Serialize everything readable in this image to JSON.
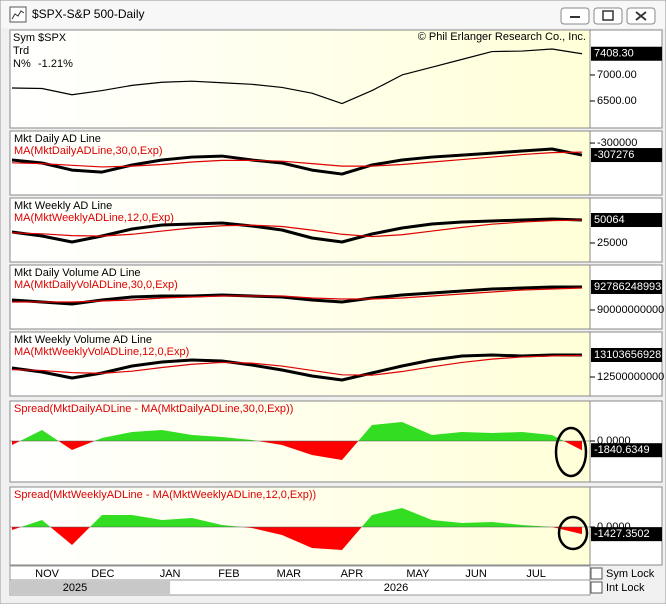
{
  "window": {
    "title": "$SPX-S&P 500-Daily",
    "copyright": "© Phil Erlanger Research Co., Inc.",
    "sym_label": "Sym",
    "sym": "$SPX",
    "trd_label": "Trd",
    "n_label": "N%",
    "n_value": "-1.21%",
    "sym_lock": "Sym Lock",
    "int_lock": "Int Lock"
  },
  "x_axis": {
    "xlim": [
      0,
      19
    ],
    "xticks": [
      {
        "value": 1.17,
        "label": "NOV"
      },
      {
        "value": 3.03,
        "label": "DEC"
      },
      {
        "value": 5.27,
        "label": "JAN"
      },
      {
        "value": 7.23,
        "label": "FEB"
      },
      {
        "value": 9.23,
        "label": "MAR"
      },
      {
        "value": 11.33,
        "label": "APR"
      },
      {
        "value": 13.53,
        "label": "MAY"
      },
      {
        "value": 15.47,
        "label": "JUN"
      },
      {
        "value": 17.47,
        "label": "JUL"
      }
    ],
    "years": [
      {
        "value": 2.1,
        "label": "2025"
      },
      {
        "value": 12.8,
        "label": "2026"
      }
    ]
  },
  "chart_data": [
    {
      "type": "line",
      "ylim": [
        5980,
        7865
      ],
      "yticks": [
        {
          "value": 7000,
          "label": "7000.00"
        },
        {
          "value": 6500,
          "label": "6500.00"
        }
      ],
      "last_label": "7408.30",
      "series": [
        {
          "name": "$SPX",
          "color": "#000000",
          "values": [
            6750,
            6740,
            6620,
            6700,
            6800,
            6860,
            6880,
            6850,
            6820,
            6760,
            6650,
            6450,
            6700,
            7000,
            7150,
            7300,
            7450,
            7460,
            7500,
            7408.3
          ]
        }
      ]
    },
    {
      "type": "line",
      "ylim": [
        -331500,
        -292700
      ],
      "yticks": [
        {
          "value": -300000,
          "label": "-300000"
        }
      ],
      "last_label": "-307276",
      "series": [
        {
          "name": "Mkt Daily AD Line",
          "color": "#000000",
          "values": [
            -310300,
            -312100,
            -316400,
            -317600,
            -313300,
            -310300,
            -308500,
            -307900,
            -310300,
            -312100,
            -316400,
            -318800,
            -313300,
            -310300,
            -308500,
            -307300,
            -306100,
            -304800,
            -303600,
            -307276
          ]
        },
        {
          "name": "MA(MktDailyADLine,30,0,Exp)",
          "color": "#dd0000",
          "values": [
            -312000,
            -312500,
            -313500,
            -314500,
            -314000,
            -313000,
            -311500,
            -310500,
            -310500,
            -311000,
            -312500,
            -314000,
            -314000,
            -313000,
            -311500,
            -310000,
            -308500,
            -307000,
            -305800,
            -305500
          ]
        }
      ]
    },
    {
      "type": "line",
      "ylim": [
        4290,
        74050
      ],
      "yticks": [
        25000
      ],
      "last_label": "50064",
      "series": [
        {
          "name": "Mkt Weekly AD Line",
          "color": "#000000",
          "values": [
            37000,
            32630,
            26090,
            32630,
            40260,
            44620,
            45710,
            46800,
            43530,
            39170,
            30450,
            26090,
            34810,
            41350,
            45710,
            47890,
            48980,
            50070,
            51160,
            50064
          ]
        },
        {
          "name": "MA(MktWeeklyADLine,12,0,Exp)",
          "color": "#dd0000",
          "values": [
            36000,
            35000,
            33000,
            32500,
            34500,
            38000,
            41500,
            43800,
            44500,
            43000,
            39000,
            34500,
            32000,
            34000,
            38000,
            42000,
            45500,
            47800,
            49300,
            50000
          ]
        }
      ]
    },
    {
      "type": "line",
      "ylim": [
        87700000000,
        95450000000
      ],
      "yticks": [
        90000000000
      ],
      "last_label": "92786248993",
      "series": [
        {
          "name": "Mkt Daily Volume AD Line",
          "color": "#000000",
          "values": [
            91211000000,
            90969000000,
            90727000000,
            91211000000,
            91574000000,
            91695000000,
            91695000000,
            91816000000,
            91695000000,
            91574000000,
            91211000000,
            90969000000,
            91453000000,
            91816000000,
            92059000000,
            92301000000,
            92543000000,
            92664000000,
            92786000000,
            92786248993
          ]
        },
        {
          "name": "MA(MktDailyVolADLine,30,0,Exp)",
          "color": "#dd0000",
          "values": [
            90969000000,
            90969000000,
            90969000000,
            91090000000,
            91211000000,
            91453000000,
            91574000000,
            91695000000,
            91695000000,
            91695000000,
            91453000000,
            91332000000,
            91332000000,
            91453000000,
            91695000000,
            91938000000,
            92180000000,
            92422000000,
            92543000000,
            92664000000
          ]
        }
      ]
    },
    {
      "type": "line",
      "ylim": [
        11978600000,
        13734800000
      ],
      "yticks": [
        12500000000
      ],
      "last_label": "13103656928",
      "series": [
        {
          "name": "Mkt Weekly Volume AD Line",
          "color": "#000000",
          "values": [
            12747000000,
            12637000000,
            12473000000,
            12610000000,
            12802000000,
            12912000000,
            12966000000,
            12939000000,
            12829000000,
            12692000000,
            12527000000,
            12418000000,
            12610000000,
            12802000000,
            12966000000,
            13076000000,
            13104000000,
            13076000000,
            13104000000,
            13103656928
          ]
        },
        {
          "name": "MA(MktWeeklyVolADLine,12,0,Exp)",
          "color": "#dd0000",
          "values": [
            12700000000,
            12680000000,
            12620000000,
            12600000000,
            12660000000,
            12760000000,
            12850000000,
            12900000000,
            12880000000,
            12800000000,
            12680000000,
            12560000000,
            12550000000,
            12650000000,
            12780000000,
            12900000000,
            12990000000,
            13050000000,
            13080000000,
            13090000000
          ]
        }
      ]
    },
    {
      "type": "area",
      "ylim": [
        -8200,
        8000
      ],
      "yticks": [
        {
          "value": 0,
          "label": "0.0000"
        }
      ],
      "last_label": "-1840.6349",
      "series": [
        {
          "name": "Spread(MktDailyADLine - MA(MktDailyADLine,30,0,Exp))",
          "color": "#33dd22",
          "negative_color": "#ff0000",
          "values": [
            -800,
            2200,
            -1800,
            600,
            1800,
            2200,
            1200,
            800,
            200,
            -800,
            -2800,
            -3800,
            3200,
            3800,
            1200,
            1800,
            1600,
            1800,
            1200,
            -1840.6349
          ]
        }
      ]
    },
    {
      "type": "area",
      "ylim": [
        -7600,
        8000
      ],
      "yticks": [
        {
          "value": 0,
          "label": "0.0000"
        }
      ],
      "last_label": "-1427.3502",
      "series": [
        {
          "name": "Spread(MktWeeklyADLine - MA(MktWeeklyADLine,12,0,Exp))",
          "color": "#33dd22",
          "negative_color": "#ff0000",
          "values": [
            -600,
            1400,
            -3600,
            2400,
            2400,
            1400,
            1800,
            400,
            -200,
            -1600,
            -4200,
            -4600,
            2400,
            3800,
            1400,
            800,
            1000,
            400,
            0,
            -1427.3502
          ]
        }
      ]
    }
  ]
}
